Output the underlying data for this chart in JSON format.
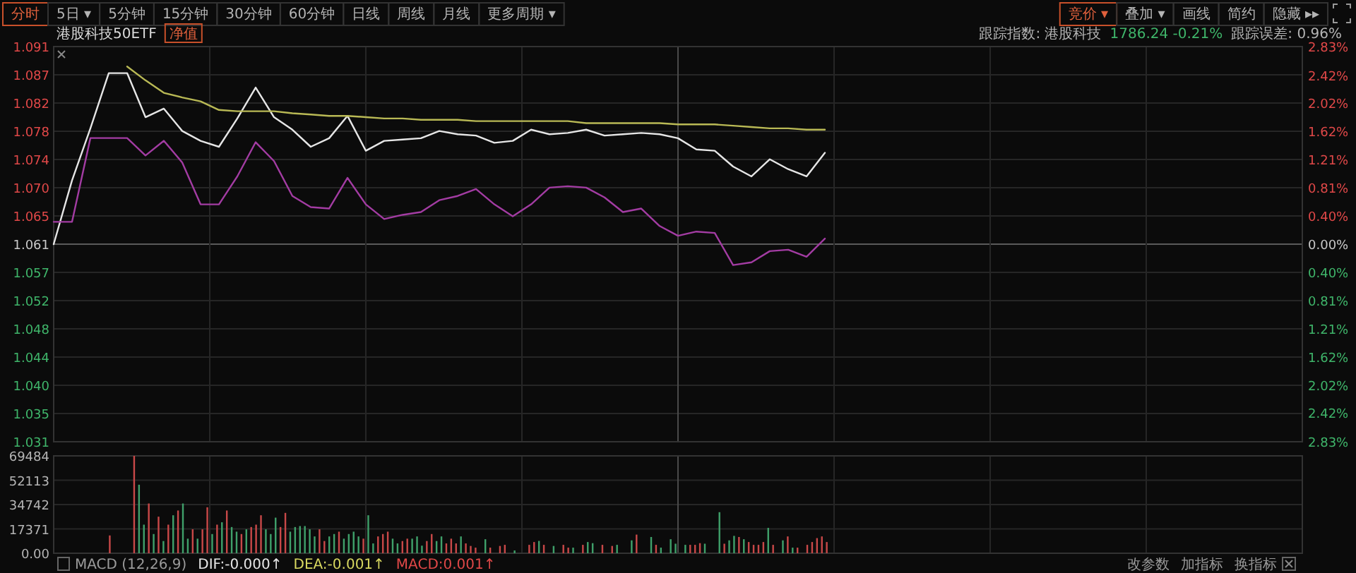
{
  "chart_data": [
    {
      "type": "line",
      "title": "港股科技50ETF",
      "annotations": [
        "分时",
        "5日 ▾",
        "5分钟",
        "15分钟",
        "30分钟",
        "60分钟",
        "日线",
        "周线",
        "月线",
        "更多周期 ▾",
        "竞价 ▾",
        "叠加 ▾",
        "画线",
        "简约",
        "隐藏 ▸▸",
        "净值",
        "跟踪指数: 港股科技",
        "1786.24 -0.21%",
        "跟踪误差: 0.96%"
      ],
      "categories": [
        null,
        null,
        null,
        null,
        null,
        null,
        null,
        null,
        null,
        null,
        null,
        null,
        null,
        null,
        null,
        null,
        null,
        null,
        null,
        null,
        null,
        null,
        null,
        null,
        null,
        null,
        null,
        null,
        null,
        null,
        null,
        null,
        null,
        null,
        null,
        null,
        null,
        null,
        null,
        null,
        null,
        null,
        null,
        null,
        null,
        null,
        null,
        null,
        null,
        null,
        null,
        null,
        null,
        null,
        null,
        null,
        null,
        null,
        null,
        null,
        null,
        null,
        null,
        null,
        null,
        null,
        null,
        null
      ],
      "series": [
        {
          "color": "#e6e6e6",
          "values": [
            1.061,
            1.0707,
            1.0786,
            1.087,
            1.087,
            1.0803,
            1.0816,
            1.0782,
            1.0767,
            1.0758,
            1.0801,
            1.0848,
            1.0803,
            1.0784,
            1.0758,
            1.0771,
            1.0805,
            1.0752,
            1.0767,
            1.0769,
            1.0771,
            1.0782,
            1.0777,
            1.0775,
            1.0764,
            1.0767,
            1.0784,
            1.0777,
            1.0779,
            1.0784,
            1.0775,
            1.0777,
            1.0779,
            1.0777,
            1.0771,
            1.0754,
            1.0752,
            1.0728,
            1.0713,
            1.0739,
            1.0724,
            1.0713,
            1.0749,
            null,
            null,
            null,
            null,
            null,
            null,
            null,
            null,
            null,
            null,
            null,
            null,
            null,
            null,
            null,
            null,
            null,
            null,
            null,
            null,
            null,
            null,
            null,
            null,
            null
          ]
        },
        {
          "color": "#b9b955",
          "values": [
            null,
            null,
            null,
            null,
            1.088,
            1.0859,
            1.084,
            1.0833,
            1.0827,
            1.0814,
            1.0812,
            1.0812,
            1.0812,
            1.0809,
            1.0807,
            1.0805,
            1.0805,
            1.0803,
            1.0801,
            1.0801,
            1.0799,
            1.0799,
            1.0799,
            1.0797,
            1.0797,
            1.0797,
            1.0797,
            1.0797,
            1.0797,
            1.0794,
            1.0794,
            1.0794,
            1.0794,
            1.0794,
            1.0792,
            1.0792,
            1.0792,
            1.079,
            1.0788,
            1.0786,
            1.0786,
            1.0784,
            1.0784,
            null,
            null,
            null,
            null,
            null,
            null,
            null,
            null,
            null,
            null,
            null,
            null,
            null,
            null,
            null,
            null,
            null,
            null,
            null,
            null,
            null,
            null,
            null,
            null,
            null
          ]
        },
        {
          "color": "#a33ca3",
          "axis": "y2",
          "values": [
            0.32,
            0.32,
            1.52,
            1.52,
            1.52,
            1.27,
            1.48,
            1.17,
            0.57,
            0.57,
            0.97,
            1.46,
            1.19,
            0.69,
            0.53,
            0.51,
            0.95,
            0.57,
            0.36,
            0.42,
            0.46,
            0.63,
            0.69,
            0.79,
            0.57,
            0.4,
            0.57,
            0.81,
            0.83,
            0.81,
            0.67,
            0.46,
            0.51,
            0.26,
            0.12,
            0.18,
            0.16,
            -0.3,
            -0.26,
            -0.1,
            -0.08,
            -0.18,
            0.08,
            null,
            null,
            null,
            null,
            null,
            null,
            null,
            null,
            null,
            null,
            null,
            null,
            null,
            null,
            null,
            null,
            null,
            null,
            null,
            null,
            null,
            null,
            null,
            null,
            null
          ]
        }
      ],
      "ylim": [
        1.03097,
        1.09103
      ],
      "yticks": [
        {
          "value": 1.09103,
          "label": "1.091"
        },
        {
          "value": 1.08674,
          "label": "1.087"
        },
        {
          "value": 1.08245,
          "label": "1.082"
        },
        {
          "value": 1.07816,
          "label": "1.078"
        },
        {
          "value": 1.07387,
          "label": "1.074"
        },
        {
          "value": 1.06958,
          "label": "1.070"
        },
        {
          "value": 1.06529,
          "label": "1.065"
        },
        {
          "value": 1.061,
          "label": "1.061"
        },
        {
          "value": 1.05671,
          "label": "1.057"
        },
        {
          "value": 1.05242,
          "label": "1.052"
        },
        {
          "value": 1.04813,
          "label": "1.048"
        },
        {
          "value": 1.04384,
          "label": "1.044"
        },
        {
          "value": 1.03955,
          "label": "1.040"
        },
        {
          "value": 1.03526,
          "label": "1.035"
        },
        {
          "value": 1.03097,
          "label": "1.031"
        }
      ],
      "y2lim": [
        -2.83,
        2.83
      ],
      "y2ticks": [
        {
          "value": 2.83,
          "label": "2.83%"
        },
        {
          "value": 2.42,
          "label": "2.42%"
        },
        {
          "value": 2.0214,
          "label": "2.02%"
        },
        {
          "value": 1.6171,
          "label": "1.62%"
        },
        {
          "value": 1.2129,
          "label": "1.21%"
        },
        {
          "value": 0.8086,
          "label": "0.81%"
        },
        {
          "value": 0.4043,
          "label": "0.40%"
        },
        {
          "value": 0,
          "label": "0.00%"
        },
        {
          "value": -0.4043,
          "label": "0.40%"
        },
        {
          "value": -0.8086,
          "label": "0.81%"
        },
        {
          "value": -1.2129,
          "label": "1.21%"
        },
        {
          "value": -1.6171,
          "label": "1.62%"
        },
        {
          "value": -2.0214,
          "label": "2.02%"
        },
        {
          "value": -2.42,
          "label": "2.42%"
        },
        {
          "value": -2.83,
          "label": "2.83%"
        }
      ],
      "grid": true
    },
    {
      "type": "bar",
      "annotations": [
        "MACD (12,26,9)",
        "DIF:-0.000↑",
        "DEA:-0.001↑",
        "MACD:0.001↑",
        "改参数",
        "加指标",
        "换指标"
      ],
      "categories": [
        null,
        null,
        null,
        null,
        null,
        null,
        null,
        null,
        null,
        null,
        null,
        null,
        null,
        null,
        null,
        null,
        null,
        null,
        null,
        null,
        null,
        null,
        null,
        null,
        null,
        null,
        null,
        null,
        null,
        null,
        null,
        null,
        null,
        null,
        null,
        null,
        null,
        null,
        null,
        null,
        null,
        null,
        null,
        null,
        null,
        null,
        null,
        null,
        null,
        null,
        null,
        null,
        null,
        null,
        null,
        null,
        null,
        null,
        null,
        null,
        null,
        null,
        null,
        null,
        null,
        null,
        null,
        null,
        null,
        null,
        null,
        null,
        null,
        null,
        null,
        null,
        null,
        null,
        null,
        null,
        null,
        null,
        null,
        null,
        null,
        null,
        null,
        null,
        null,
        null,
        null,
        null,
        null,
        null,
        null,
        null,
        null,
        null,
        null,
        null,
        null,
        null,
        null,
        null,
        null,
        null,
        null,
        null,
        null,
        null,
        null,
        null,
        null,
        null,
        null,
        null,
        null,
        null,
        null,
        null,
        null,
        null,
        null,
        null,
        null,
        null,
        null,
        null,
        null,
        null,
        null,
        null,
        null,
        null,
        null,
        null,
        null,
        null,
        null,
        null,
        null,
        null,
        null,
        null,
        null,
        null,
        null,
        null,
        null,
        null,
        null,
        null,
        null,
        null,
        null,
        null,
        null,
        null,
        null,
        null,
        null,
        null,
        null,
        null,
        null,
        null,
        null,
        null,
        null,
        null,
        null,
        null,
        null,
        null,
        null,
        null,
        null,
        null,
        null,
        null,
        null,
        null,
        null,
        null,
        null,
        null,
        null,
        null,
        null,
        null,
        null,
        null,
        null,
        null,
        null,
        null,
        null,
        null,
        null,
        null,
        null,
        null,
        null,
        null,
        null,
        null,
        null,
        null,
        null,
        null,
        null,
        null,
        null,
        null,
        null,
        null,
        null,
        null,
        null,
        null,
        null,
        null,
        null,
        null,
        null,
        null,
        null,
        null,
        null,
        null,
        null,
        null,
        null,
        null,
        null,
        null,
        null,
        null,
        null,
        null,
        null,
        null,
        null,
        null,
        null,
        null,
        null,
        null,
        null,
        null,
        null,
        null,
        null,
        null,
        null,
        null
      ],
      "values": [
        null,
        null,
        null,
        null,
        null,
        null,
        null,
        null,
        null,
        null,
        null,
        12700,
        null,
        null,
        null,
        null,
        69484,
        48900,
        20400,
        35500,
        13700,
        26100,
        8700,
        20400,
        27100,
        30500,
        35500,
        10400,
        17100,
        10400,
        17100,
        32800,
        13700,
        20400,
        22100,
        30500,
        18700,
        15400,
        13700,
        17100,
        18700,
        20400,
        27100,
        17100,
        13700,
        25400,
        18700,
        28800,
        15400,
        18700,
        19400,
        19400,
        17100,
        12000,
        17100,
        8700,
        12000,
        13700,
        15400,
        10400,
        13700,
        15400,
        12000,
        10400,
        27100,
        7000,
        12000,
        13700,
        15400,
        10400,
        7000,
        8700,
        10400,
        10400,
        12000,
        5400,
        8700,
        13700,
        8700,
        12000,
        7000,
        10400,
        7000,
        12000,
        7000,
        5200,
        4000,
        null,
        10000,
        4000,
        null,
        5200,
        6000,
        null,
        2000,
        null,
        null,
        6000,
        8000,
        8800,
        6000,
        null,
        5200,
        null,
        6000,
        4000,
        4000,
        null,
        6000,
        8000,
        7200,
        null,
        6000,
        null,
        5200,
        6000,
        null,
        null,
        9200,
        13300,
        null,
        null,
        11600,
        6000,
        4000,
        null,
        10000,
        6800,
        null,
        6000,
        6000,
        6000,
        7200,
        6800,
        null,
        null,
        29300,
        6800,
        9200,
        12400,
        11600,
        10000,
        8000,
        6000,
        6000,
        8000,
        18100,
        6000,
        null,
        9200,
        12000,
        4000,
        4000,
        null,
        6000,
        8000,
        10800,
        12000,
        8000,
        null,
        null,
        null,
        null,
        null,
        null,
        null,
        null,
        null,
        null,
        null,
        null,
        null,
        null,
        null,
        null,
        null,
        null,
        null,
        null,
        null,
        null,
        null,
        null,
        null,
        null,
        null,
        null,
        null,
        null,
        null,
        null,
        null,
        null,
        null,
        null,
        null,
        null,
        null,
        null,
        null,
        null,
        null,
        null,
        null,
        null,
        null,
        null,
        null,
        null,
        null,
        null,
        null,
        null,
        null,
        null,
        null,
        null,
        null,
        null,
        null,
        null,
        null,
        null,
        null,
        null,
        null,
        null,
        null,
        null,
        null,
        null,
        null,
        null,
        null,
        null,
        null,
        null,
        null,
        null,
        null,
        null,
        null,
        null,
        null,
        null,
        null,
        null,
        null,
        null,
        null,
        null,
        null,
        null,
        null,
        null,
        null
      ],
      "colors": [
        null,
        null,
        null,
        null,
        null,
        null,
        null,
        null,
        null,
        null,
        null,
        "#c84848",
        null,
        null,
        null,
        null,
        "#c84848",
        "#3fa06a",
        "#3fa06a",
        "#c84848",
        "#3fa06a",
        "#c84848",
        "#3fa06a",
        "#c84848",
        "#3fa06a",
        "#c84848",
        "#3fa06a",
        "#3fa06a",
        "#c84848",
        "#3fa06a",
        "#c84848",
        "#c84848",
        "#3fa06a",
        "#c84848",
        "#3fa06a",
        "#c84848",
        "#3fa06a",
        "#3fa06a",
        "#c84848",
        "#3fa06a",
        "#c84848",
        "#c84848",
        "#c84848",
        "#3fa06a",
        "#3fa06a",
        "#3fa06a",
        "#c84848",
        "#c84848",
        "#3fa06a",
        "#3fa06a",
        "#3fa06a",
        "#3fa06a",
        "#3fa06a",
        "#3fa06a",
        "#c84848",
        "#c84848",
        "#3fa06a",
        "#3fa06a",
        "#c84848",
        "#3fa06a",
        "#3fa06a",
        "#3fa06a",
        "#3fa06a",
        "#c84848",
        "#3fa06a",
        "#3fa06a",
        "#c84848",
        "#c84848",
        "#c84848",
        "#3fa06a",
        "#3fa06a",
        "#c84848",
        "#c84848",
        "#3fa06a",
        "#3fa06a",
        "#3fa06a",
        "#c84848",
        "#c84848",
        "#3fa06a",
        "#3fa06a",
        "#c84848",
        "#c84848",
        "#c84848",
        "#3fa06a",
        "#c84848",
        "#c84848",
        "#c84848",
        null,
        "#3fa06a",
        "#c84848",
        null,
        "#c84848",
        "#c84848",
        null,
        "#3fa06a",
        null,
        null,
        "#c84848",
        "#c84848",
        "#3fa06a",
        "#c84848",
        null,
        "#3fa06a",
        null,
        "#c84848",
        "#c84848",
        "#3fa06a",
        null,
        "#c84848",
        "#3fa06a",
        "#3fa06a",
        null,
        "#c84848",
        null,
        "#c84848",
        "#3fa06a",
        null,
        null,
        "#3fa06a",
        "#c84848",
        null,
        null,
        "#3fa06a",
        "#c84848",
        "#3fa06a",
        null,
        "#3fa06a",
        "#3fa06a",
        null,
        "#3fa06a",
        "#c84848",
        "#c84848",
        "#c84848",
        "#3fa06a",
        null,
        null,
        "#3fa06a",
        "#c84848",
        "#3fa06a",
        "#3fa06a",
        "#c84848",
        "#3fa06a",
        "#c84848",
        "#c84848",
        "#c84848",
        "#c84848",
        "#3fa06a",
        "#c84848",
        null,
        "#3fa06a",
        "#c84848",
        "#3fa06a",
        "#c84848",
        null,
        "#c84848",
        "#c84848",
        "#c84848",
        "#c84848",
        "#c84848",
        null,
        null,
        null,
        null,
        null,
        null,
        null,
        null,
        null,
        null,
        null,
        null,
        null,
        null,
        null,
        null,
        null,
        null,
        null,
        null,
        null,
        null,
        null,
        null,
        null,
        null,
        null,
        null,
        null,
        null,
        null,
        null,
        null,
        null,
        null,
        null,
        null,
        null,
        null,
        null,
        null,
        null,
        null,
        null,
        null,
        null,
        null,
        null,
        null,
        null,
        null,
        null,
        null,
        null,
        null,
        null,
        null,
        null,
        null,
        null,
        null,
        null,
        null,
        null,
        null,
        null,
        null,
        null,
        null,
        null,
        null,
        null,
        null,
        null,
        null,
        null,
        null,
        null,
        null,
        null,
        null,
        null,
        null,
        null,
        null,
        null,
        null,
        null,
        null,
        null,
        null,
        null,
        null,
        null,
        null,
        null,
        null
      ],
      "ylim": [
        0,
        69484
      ],
      "yticks": [
        {
          "value": 0,
          "label": "0.00"
        },
        17371,
        34742,
        52113,
        69484
      ],
      "grid": true
    }
  ]
}
